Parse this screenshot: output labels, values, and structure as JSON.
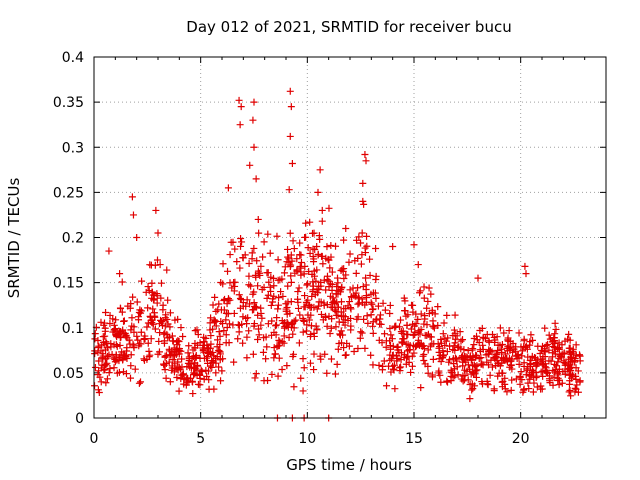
{
  "chart_data": {
    "type": "scatter",
    "title": "Day 012 of 2021, SRMTID for receiver bucu",
    "xlabel": "GPS time / hours",
    "ylabel": "SRMTID / TECUs",
    "xlim": [
      0,
      24
    ],
    "ylim": [
      0,
      0.4
    ],
    "x_ticks": [
      0,
      5,
      10,
      15,
      20
    ],
    "x_tick_labels": [
      "0",
      "5",
      "10",
      "15",
      "20"
    ],
    "y_ticks": [
      0,
      0.05,
      0.1,
      0.15,
      0.2,
      0.25,
      0.3,
      0.35,
      0.4
    ],
    "y_tick_labels": [
      "0",
      "0.05",
      "0.1",
      "0.15",
      "0.2",
      "0.25",
      "0.3",
      "0.35",
      "0.4"
    ],
    "grid": true,
    "marker": "+",
    "color": "#e00000",
    "series": [
      {
        "name": "SRMTID",
        "profile": [
          {
            "x": 0.0,
            "y": 0.07
          },
          {
            "x": 0.5,
            "y": 0.075
          },
          {
            "x": 1.0,
            "y": 0.08
          },
          {
            "x": 1.5,
            "y": 0.09
          },
          {
            "x": 2.0,
            "y": 0.095
          },
          {
            "x": 2.5,
            "y": 0.105
          },
          {
            "x": 3.0,
            "y": 0.12
          },
          {
            "x": 3.5,
            "y": 0.085
          },
          {
            "x": 4.0,
            "y": 0.06
          },
          {
            "x": 4.5,
            "y": 0.06
          },
          {
            "x": 5.0,
            "y": 0.06
          },
          {
            "x": 5.5,
            "y": 0.075
          },
          {
            "x": 6.0,
            "y": 0.1
          },
          {
            "x": 6.5,
            "y": 0.13
          },
          {
            "x": 7.0,
            "y": 0.14
          },
          {
            "x": 7.5,
            "y": 0.13
          },
          {
            "x": 8.0,
            "y": 0.13
          },
          {
            "x": 8.5,
            "y": 0.12
          },
          {
            "x": 9.0,
            "y": 0.14
          },
          {
            "x": 9.5,
            "y": 0.13
          },
          {
            "x": 10.0,
            "y": 0.13
          },
          {
            "x": 10.5,
            "y": 0.15
          },
          {
            "x": 11.0,
            "y": 0.13
          },
          {
            "x": 11.5,
            "y": 0.11
          },
          {
            "x": 12.0,
            "y": 0.14
          },
          {
            "x": 12.5,
            "y": 0.16
          },
          {
            "x": 13.0,
            "y": 0.12
          },
          {
            "x": 13.5,
            "y": 0.1
          },
          {
            "x": 14.0,
            "y": 0.08
          },
          {
            "x": 14.5,
            "y": 0.08
          },
          {
            "x": 15.0,
            "y": 0.09
          },
          {
            "x": 15.5,
            "y": 0.1
          },
          {
            "x": 16.0,
            "y": 0.08
          },
          {
            "x": 16.5,
            "y": 0.07
          },
          {
            "x": 17.0,
            "y": 0.065
          },
          {
            "x": 17.5,
            "y": 0.06
          },
          {
            "x": 18.0,
            "y": 0.065
          },
          {
            "x": 18.5,
            "y": 0.07
          },
          {
            "x": 19.0,
            "y": 0.065
          },
          {
            "x": 19.5,
            "y": 0.065
          },
          {
            "x": 20.0,
            "y": 0.07
          },
          {
            "x": 20.5,
            "y": 0.06
          },
          {
            "x": 21.0,
            "y": 0.065
          },
          {
            "x": 21.5,
            "y": 0.07
          },
          {
            "x": 22.0,
            "y": 0.065
          },
          {
            "x": 22.5,
            "y": 0.055
          },
          {
            "x": 22.8,
            "y": 0.055
          }
        ],
        "outliers": [
          {
            "x": 0.7,
            "y": 0.185
          },
          {
            "x": 1.2,
            "y": 0.16
          },
          {
            "x": 1.8,
            "y": 0.245
          },
          {
            "x": 1.85,
            "y": 0.225
          },
          {
            "x": 2.0,
            "y": 0.2
          },
          {
            "x": 2.9,
            "y": 0.23
          },
          {
            "x": 3.0,
            "y": 0.205
          },
          {
            "x": 3.1,
            "y": 0.17
          },
          {
            "x": 6.3,
            "y": 0.255
          },
          {
            "x": 6.8,
            "y": 0.352
          },
          {
            "x": 6.85,
            "y": 0.325
          },
          {
            "x": 6.9,
            "y": 0.345
          },
          {
            "x": 7.5,
            "y": 0.35
          },
          {
            "x": 7.45,
            "y": 0.33
          },
          {
            "x": 7.5,
            "y": 0.3
          },
          {
            "x": 7.6,
            "y": 0.265
          },
          {
            "x": 7.3,
            "y": 0.28
          },
          {
            "x": 7.7,
            "y": 0.22
          },
          {
            "x": 9.2,
            "y": 0.362
          },
          {
            "x": 9.25,
            "y": 0.345
          },
          {
            "x": 9.2,
            "y": 0.312
          },
          {
            "x": 9.3,
            "y": 0.282
          },
          {
            "x": 9.15,
            "y": 0.253
          },
          {
            "x": 10.5,
            "y": 0.25
          },
          {
            "x": 10.6,
            "y": 0.275
          },
          {
            "x": 10.7,
            "y": 0.23
          },
          {
            "x": 11.8,
            "y": 0.21
          },
          {
            "x": 12.6,
            "y": 0.26
          },
          {
            "x": 12.7,
            "y": 0.292
          },
          {
            "x": 12.75,
            "y": 0.285
          },
          {
            "x": 12.6,
            "y": 0.24
          },
          {
            "x": 14.0,
            "y": 0.19
          },
          {
            "x": 15.0,
            "y": 0.192
          },
          {
            "x": 15.2,
            "y": 0.17
          },
          {
            "x": 18.0,
            "y": 0.155
          },
          {
            "x": 20.2,
            "y": 0.168
          },
          {
            "x": 20.25,
            "y": 0.16
          },
          {
            "x": 9.8,
            "y": 0.03
          },
          {
            "x": 8.6,
            "y": 0.0
          },
          {
            "x": 9.3,
            "y": 0.0
          },
          {
            "x": 9.85,
            "y": 0.0
          },
          {
            "x": 11.0,
            "y": 0.0
          }
        ]
      }
    ]
  }
}
